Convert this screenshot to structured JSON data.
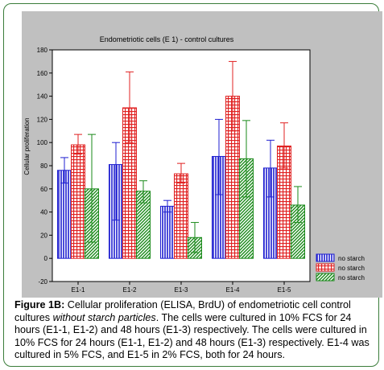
{
  "chart_data": {
    "type": "bar",
    "title": "Endometriotic cells (E 1) - control cultures",
    "xlabel": "",
    "ylabel": "Cellular proliferation",
    "ylim": [
      -20,
      180
    ],
    "yticks": [
      -20,
      0,
      20,
      40,
      60,
      80,
      100,
      120,
      140,
      160,
      180
    ],
    "categories": [
      "E1-1",
      "E1-2",
      "E1-3",
      "E1-4",
      "E1-5"
    ],
    "grid": false,
    "legend_position": "bottom-right",
    "series": [
      {
        "name": "no starch",
        "color": "#1f1fd0",
        "pattern": "vertical-lines",
        "values": [
          76,
          81,
          45,
          88,
          78
        ],
        "error_high": [
          87,
          100,
          50,
          120,
          102
        ],
        "error_low": [
          65,
          33,
          40,
          55,
          53
        ]
      },
      {
        "name": "no starch",
        "color": "#e02020",
        "pattern": "grid",
        "values": [
          98,
          130,
          73,
          140,
          97
        ],
        "error_high": [
          107,
          161,
          82,
          170,
          117
        ],
        "error_low": [
          90,
          100,
          65,
          110,
          78
        ]
      },
      {
        "name": "no starch",
        "color": "#1a8a1a",
        "pattern": "diagonal",
        "values": [
          60,
          58,
          18,
          86,
          46
        ],
        "error_high": [
          107,
          67,
          31,
          119,
          62
        ],
        "error_low": [
          14,
          48,
          5,
          53,
          31
        ]
      }
    ]
  },
  "caption": {
    "label": "Figure 1B:",
    "text_1": " Cellular proliferation (ELISA, BrdU) of endometriotic cell control cultures ",
    "italic": "without starch particles",
    "text_2": ". The cells were cultured in 10% FCS for 24 hours (E1-1, E1-2) and 48 hours (E1-3) respectively. The cells were cultured in 10% FCS for 24 hours (E1-1, E1-2) and 48 hours (E1-3) respectively. E1-4 was cultured in 5% FCS, and E1-5 in 2% FCS, both for 24 hours."
  }
}
